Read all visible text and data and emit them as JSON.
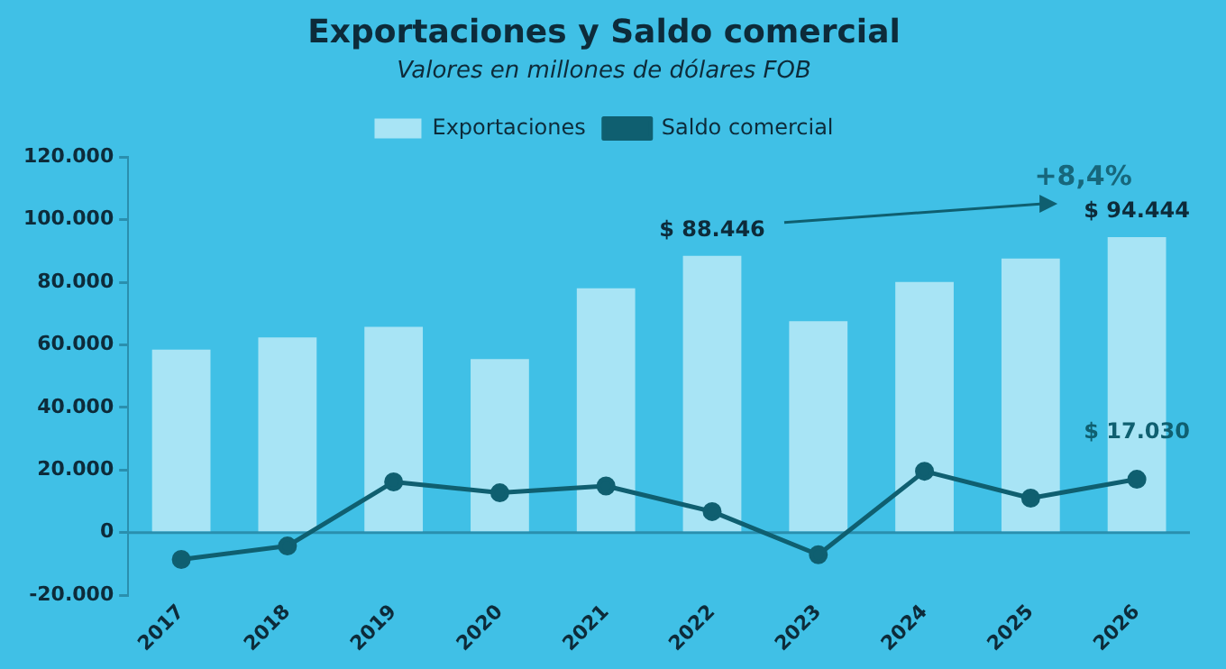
{
  "chart_data": {
    "type": "bar",
    "title": "Exportaciones y Saldo comercial",
    "subtitle": "Valores en millones de dólares FOB",
    "categories": [
      "2017",
      "2018",
      "2019",
      "2020",
      "2021",
      "2022",
      "2023",
      "2024",
      "2025",
      "2026"
    ],
    "series": [
      {
        "name": "Exportaciones",
        "color": "#a8e4f5",
        "values": [
          58500,
          62400,
          65800,
          55500,
          78100,
          88446,
          67600,
          80100,
          87600,
          94444
        ],
        "value_labels": [
          null,
          null,
          null,
          null,
          null,
          "$ 88.446",
          null,
          null,
          null,
          "$ 94.444"
        ]
      },
      {
        "name": "Saldo comercial",
        "type": "line",
        "color": "#0f5f70",
        "values": [
          -8600,
          -4300,
          16200,
          12700,
          14900,
          6700,
          -7100,
          19600,
          11000,
          17030
        ],
        "value_labels": [
          null,
          null,
          null,
          null,
          null,
          null,
          null,
          null,
          null,
          "$ 17.030"
        ]
      }
    ],
    "ylim": [
      -20000,
      120000
    ],
    "yticks": [
      {
        "value": -20000,
        "label": "-20.000"
      },
      {
        "value": 0,
        "label": "0"
      },
      {
        "value": 20000,
        "label": "20.000"
      },
      {
        "value": 40000,
        "label": "40.000"
      },
      {
        "value": 60000,
        "label": "60.000"
      },
      {
        "value": 80000,
        "label": "80.000"
      },
      {
        "value": 100000,
        "label": "100.000"
      },
      {
        "value": 120000,
        "label": "120.000"
      }
    ],
    "annotations": [
      "+8,4%"
    ],
    "ref_lines": [
      {
        "axis": "y",
        "value": 0,
        "color": "#2a8fae"
      }
    ],
    "legend": "top",
    "grid": false,
    "marker": "circle",
    "line_style": "solid"
  }
}
